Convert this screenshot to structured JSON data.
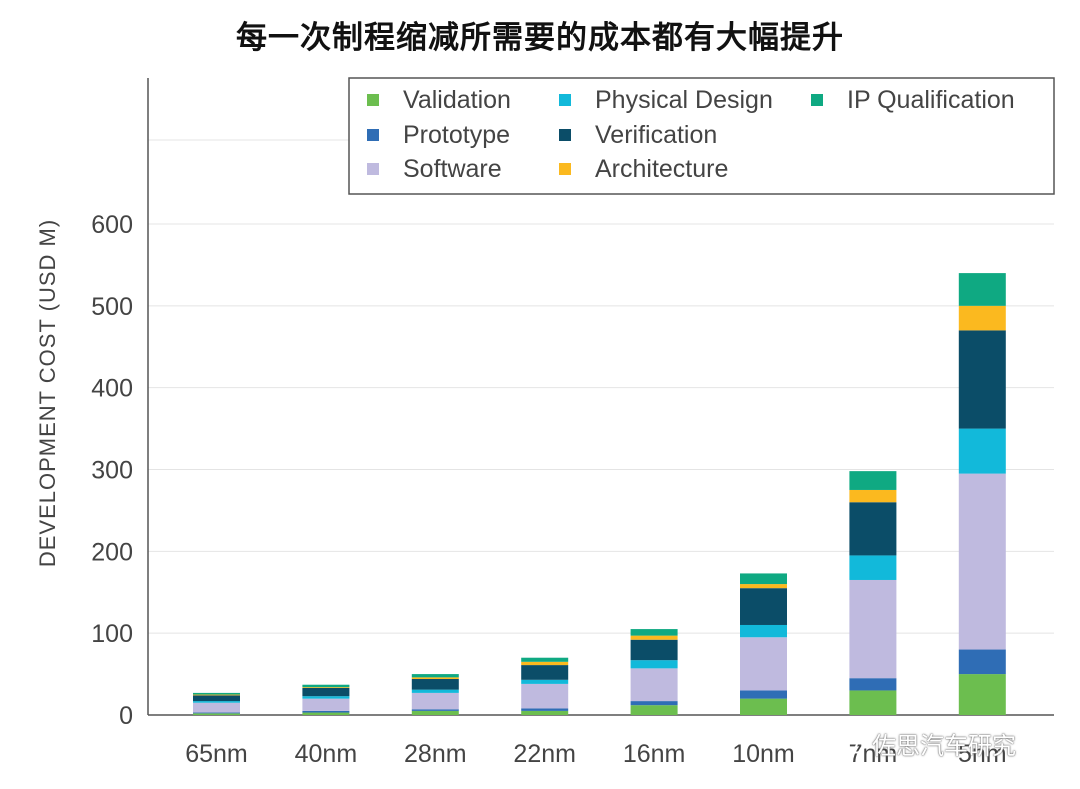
{
  "title": "每一次制程缩减所需要的成本都有大幅提升",
  "watermark": "佐思汽车研究",
  "chart_data": {
    "type": "bar",
    "stacked": true,
    "categories": [
      "65nm",
      "40nm",
      "28nm",
      "22nm",
      "16nm",
      "10nm",
      "7nm",
      "5nm"
    ],
    "ylabel": "DEVELOPMENT COST (USD M)",
    "ylim": [
      0,
      600
    ],
    "yticks": [
      0,
      100,
      200,
      300,
      400,
      500,
      600
    ],
    "grid": true,
    "legend_position": "top-right",
    "series": [
      {
        "name": "Validation",
        "color": "#6cbe4f",
        "values": [
          2,
          3,
          5,
          5,
          12,
          20,
          30,
          50
        ]
      },
      {
        "name": "Prototype",
        "color": "#2f6db5",
        "values": [
          1,
          2,
          2,
          3,
          5,
          10,
          15,
          30
        ]
      },
      {
        "name": "Software",
        "color": "#bfbadf",
        "values": [
          12,
          15,
          20,
          30,
          40,
          65,
          120,
          215
        ]
      },
      {
        "name": "Physical Design",
        "color": "#12b9da",
        "values": [
          2,
          3,
          4,
          5,
          10,
          15,
          30,
          55
        ]
      },
      {
        "name": "Verification",
        "color": "#0b4d68",
        "values": [
          7,
          10,
          13,
          18,
          25,
          45,
          65,
          120
        ]
      },
      {
        "name": "Architecture",
        "color": "#fbb91f",
        "values": [
          1,
          1,
          2,
          4,
          5,
          5,
          15,
          30
        ]
      },
      {
        "name": "IP Qualification",
        "color": "#0fa982",
        "values": [
          2,
          3,
          4,
          5,
          8,
          13,
          23,
          40
        ]
      }
    ]
  }
}
